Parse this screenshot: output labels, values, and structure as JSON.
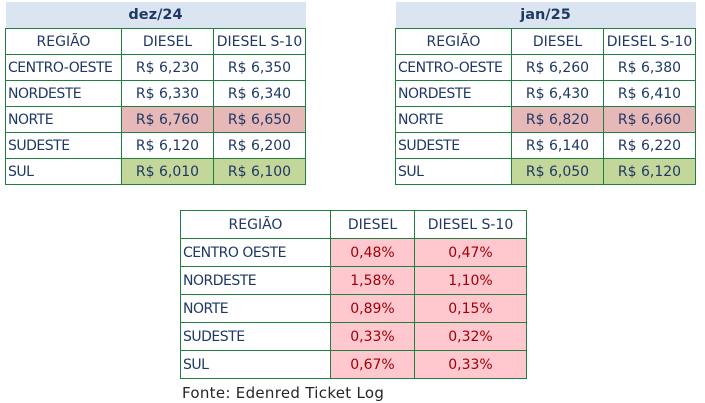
{
  "table_dec": {
    "title": "dez/24",
    "headers": [
      "REGIÃO",
      "DIESEL",
      "DIESEL S-10"
    ],
    "rows": [
      {
        "region": "CENTRO-OESTE",
        "diesel": "R$ 6,230",
        "s10": "R$ 6,350",
        "highlight": "none"
      },
      {
        "region": "NORDESTE",
        "diesel": "R$ 6,330",
        "s10": "R$ 6,340",
        "highlight": "none"
      },
      {
        "region": "NORTE",
        "diesel": "R$ 6,760",
        "s10": "R$ 6,650",
        "highlight": "red"
      },
      {
        "region": "SUDESTE",
        "diesel": "R$ 6,120",
        "s10": "R$ 6,200",
        "highlight": "none"
      },
      {
        "region": "SUL",
        "diesel": "R$ 6,010",
        "s10": "R$ 6,100",
        "highlight": "green"
      }
    ]
  },
  "table_jan": {
    "title": "jan/25",
    "headers": [
      "REGIÃO",
      "DIESEL",
      "DIESEL S-10"
    ],
    "rows": [
      {
        "region": "CENTRO-OESTE",
        "diesel": "R$ 6,260",
        "s10": "R$ 6,380",
        "highlight": "none"
      },
      {
        "region": "NORDESTE",
        "diesel": "R$ 6,430",
        "s10": "R$ 6,410",
        "highlight": "none"
      },
      {
        "region": "NORTE",
        "diesel": "R$ 6,820",
        "s10": "R$ 6,660",
        "highlight": "red"
      },
      {
        "region": "SUDESTE",
        "diesel": "R$ 6,140",
        "s10": "R$ 6,220",
        "highlight": "none"
      },
      {
        "region": "SUL",
        "diesel": "R$ 6,050",
        "s10": "R$ 6,120",
        "highlight": "green"
      }
    ]
  },
  "table_var": {
    "headers": [
      "REGIÃO",
      "DIESEL",
      "DIESEL S-10"
    ],
    "rows": [
      {
        "region": "CENTRO OESTE",
        "diesel": "0,48%",
        "s10": "0,47%"
      },
      {
        "region": "NORDESTE",
        "diesel": "1,58%",
        "s10": "1,10%"
      },
      {
        "region": "NORTE",
        "diesel": "0,89%",
        "s10": "0,15%"
      },
      {
        "region": "SUDESTE",
        "diesel": "0,33%",
        "s10": "0,32%"
      },
      {
        "region": "SUL",
        "diesel": "0,67%",
        "s10": "0,33%"
      }
    ]
  },
  "source": "Fonte: Edenred Ticket Log",
  "colors": {
    "red_cell": "#e6b8b7",
    "green_cell": "#c4d79b",
    "pink_cell": "#ffc7ce",
    "border": "#1e7f3e",
    "title_bg": "#dbe5f1"
  }
}
